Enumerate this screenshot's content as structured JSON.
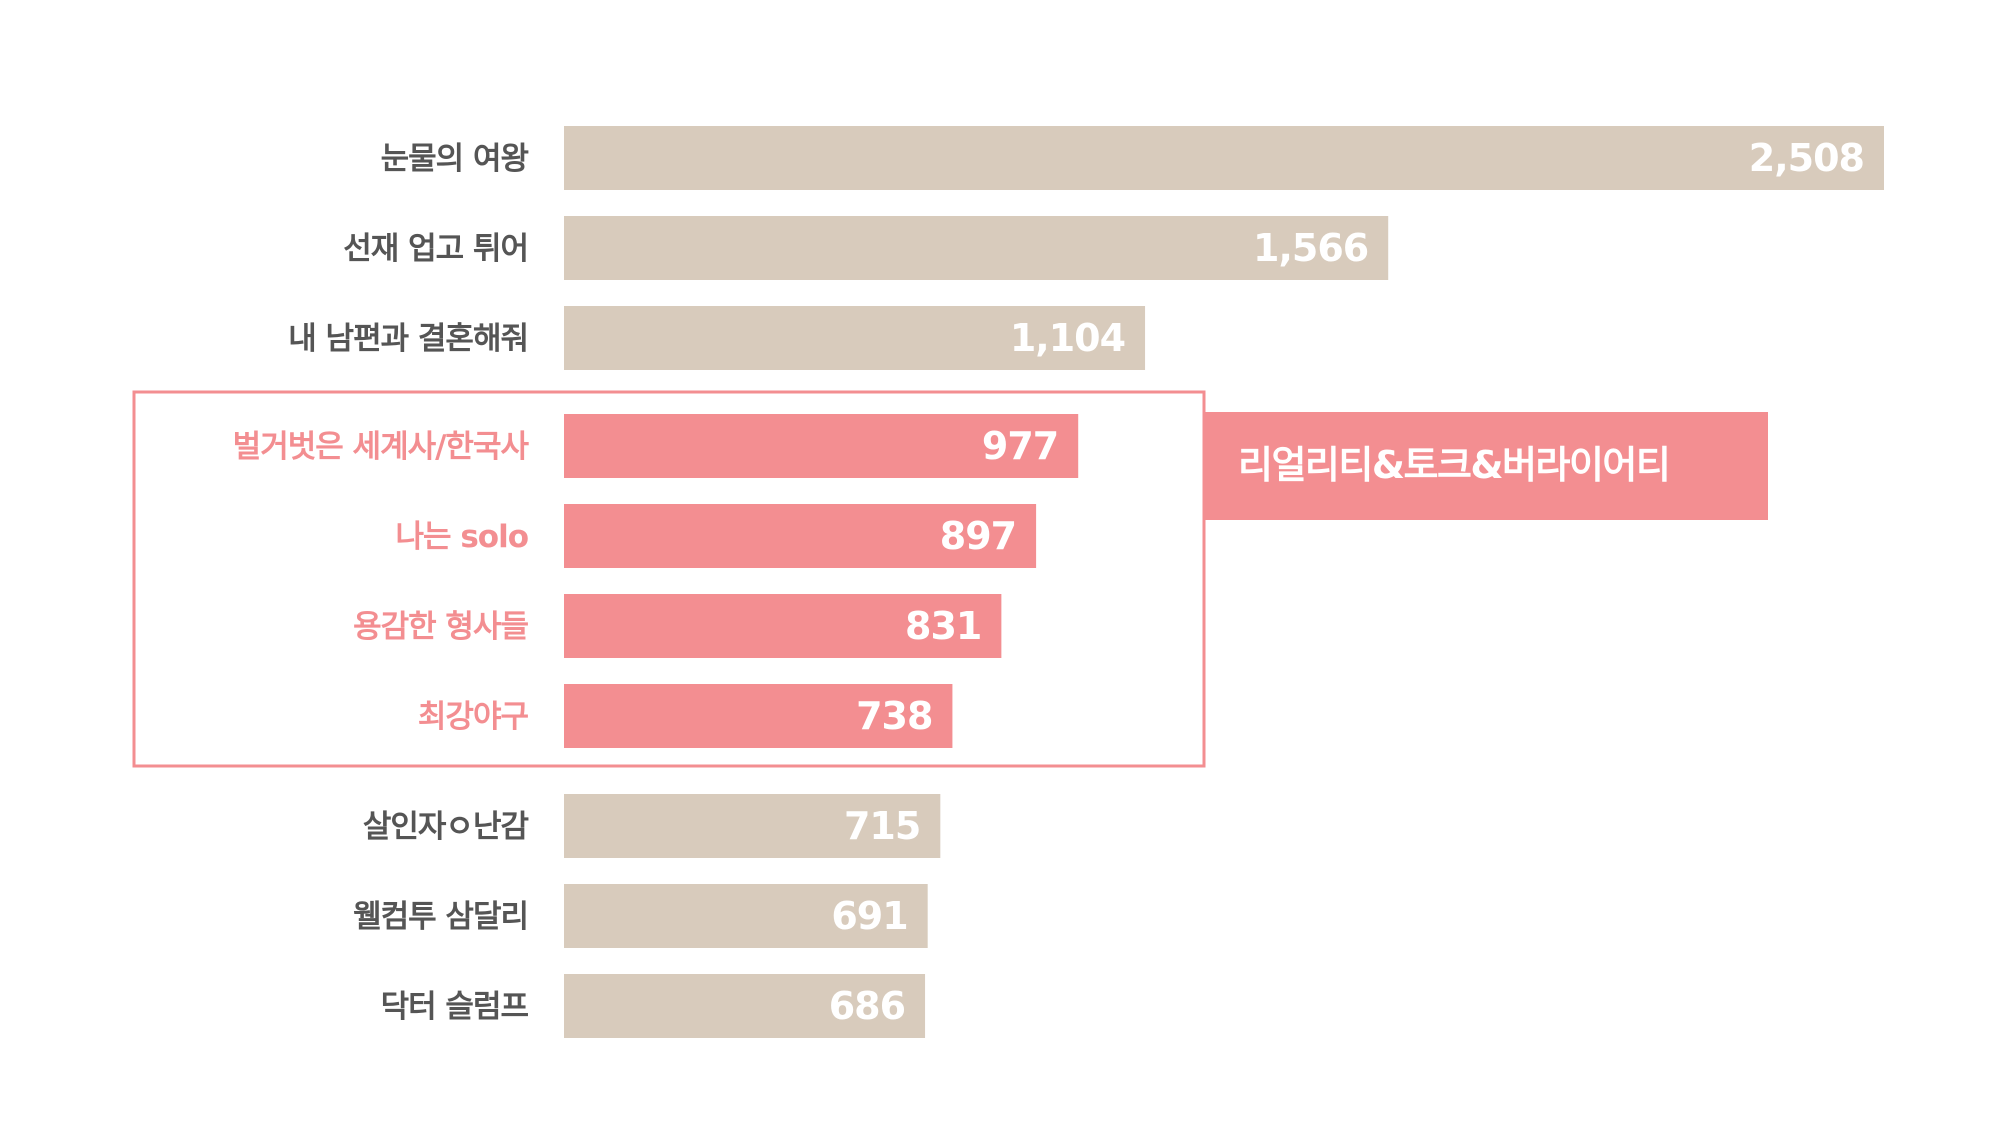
{
  "chart_data": {
    "type": "bar",
    "orientation": "horizontal",
    "categories": [
      "눈물의 여왕",
      "선재 업고 튀어",
      "내 남편과 결혼해줘",
      "벌거벗은 세계사/한국사",
      "나는 solo",
      "용감한 형사들",
      "최강야구",
      "살인자ㅇ난감",
      "웰컴투 삼달리",
      "닥터 슬럼프"
    ],
    "values": [
      2508,
      1566,
      1104,
      977,
      897,
      831,
      738,
      715,
      691,
      686
    ],
    "value_labels": [
      "2,508",
      "1,566",
      "1,104",
      "977",
      "897",
      "831",
      "738",
      "715",
      "691",
      "686"
    ],
    "highlighted": [
      false,
      false,
      false,
      true,
      true,
      true,
      true,
      false,
      false,
      false
    ],
    "highlight_group": {
      "label": "리얼리티&토크&버라이어티",
      "color": "#f38e91"
    },
    "colors": {
      "default_bar": "#d8cbbc",
      "highlight_bar": "#f38e91",
      "default_label": "#555555",
      "highlight_label": "#f38e91",
      "value_label": "#ffffff"
    },
    "xlim": [
      0,
      2508
    ],
    "grid": false,
    "legend": "none"
  }
}
